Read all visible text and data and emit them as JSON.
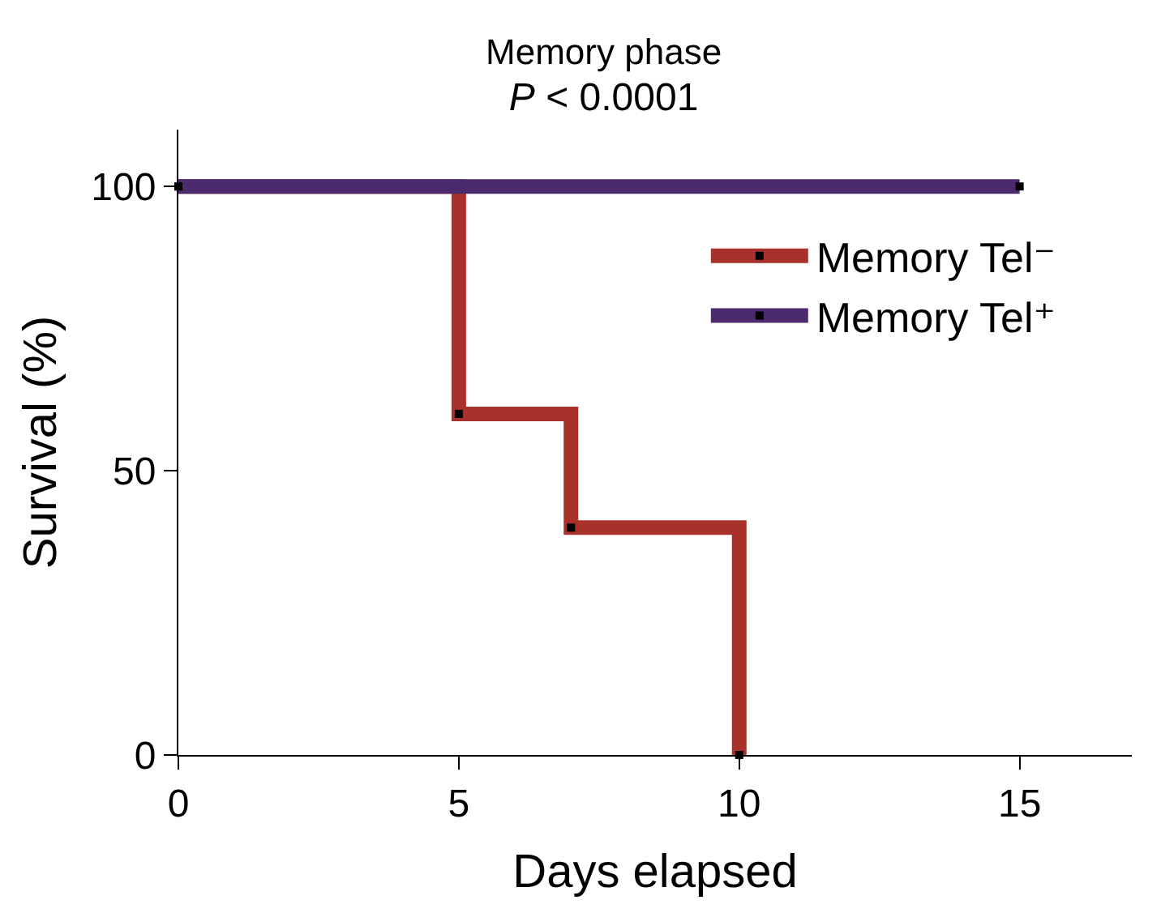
{
  "chart_data": {
    "type": "step",
    "title": "Memory phase",
    "subtitle": "P < 0.0001",
    "xlabel": "Days elapsed",
    "ylabel": "Survival (%)",
    "xlim": [
      0,
      17
    ],
    "xticks": [
      0,
      5,
      10,
      15
    ],
    "ylim": [
      0,
      110
    ],
    "yticks": [
      0,
      50,
      100
    ],
    "grid": false,
    "legend": "right",
    "marker": "square",
    "series": [
      {
        "name": "Memory Tel⁻",
        "color": "#a8322b",
        "x": [
          0,
          5,
          7,
          10
        ],
        "values": [
          100,
          60,
          40,
          0
        ]
      },
      {
        "name": "Memory Tel⁺",
        "color": "#4b2b6e",
        "x": [
          0,
          15
        ],
        "values": [
          100,
          100
        ]
      }
    ]
  }
}
